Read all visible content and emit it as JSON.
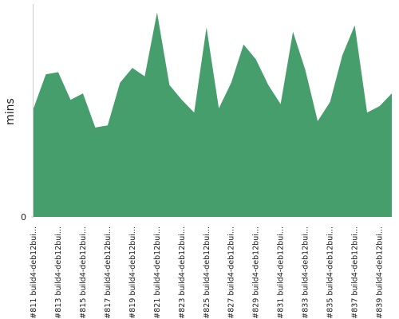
{
  "chart_data": {
    "type": "area",
    "y_label": "mins",
    "color": "#479e6d",
    "categories": [
      "#811 build4-deb12bui...",
      null,
      "#813 build4-deb12bui...",
      null,
      "#815 build4-deb12bui...",
      null,
      "#817 build4-deb12bui...",
      null,
      "#819 build4-deb12bui...",
      null,
      "#821 build4-deb12bui...",
      null,
      "#823 build4-deb12bui...",
      null,
      "#825 build4-deb12bui...",
      null,
      "#827 build4-deb12bui...",
      null,
      "#829 build4-deb12bui...",
      null,
      "#831 build4-deb12bui...",
      null,
      "#833 build4-deb12bui...",
      null,
      "#835 build4-deb12bui...",
      null,
      "#837 build4-deb12bui...",
      null,
      "#839 build4-deb12bui...",
      null
    ],
    "values": [
      51,
      67,
      68,
      55,
      58,
      42,
      43,
      63,
      70,
      66,
      96,
      62,
      55,
      49,
      89,
      51,
      63,
      81,
      74,
      62,
      53,
      87,
      69,
      45,
      54,
      76,
      90,
      49,
      52,
      58
    ],
    "ylim": [
      0,
      100
    ],
    "yticks": [
      0
    ]
  }
}
